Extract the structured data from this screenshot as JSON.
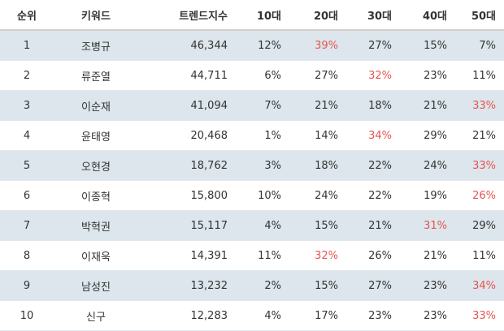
{
  "colors": {
    "highlight": "#e8544f",
    "stripe": "#dce6ec"
  },
  "header": {
    "rank": "순위",
    "keyword": "키워드",
    "trend_index": "트렌드지수",
    "age10": "10대",
    "age20": "20대",
    "age30": "30대",
    "age40": "40대",
    "age50": "50대"
  },
  "rows": [
    {
      "rank": "1",
      "keyword": "조병규",
      "trend": "46,344",
      "age10": "12%",
      "age20": "39%",
      "age30": "27%",
      "age40": "15%",
      "age50": "7%",
      "highlight": "age20"
    },
    {
      "rank": "2",
      "keyword": "류준열",
      "trend": "44,711",
      "age10": "6%",
      "age20": "27%",
      "age30": "32%",
      "age40": "23%",
      "age50": "11%",
      "highlight": "age30"
    },
    {
      "rank": "3",
      "keyword": "이순재",
      "trend": "41,094",
      "age10": "7%",
      "age20": "21%",
      "age30": "18%",
      "age40": "21%",
      "age50": "33%",
      "highlight": "age50"
    },
    {
      "rank": "4",
      "keyword": "윤태영",
      "trend": "20,468",
      "age10": "1%",
      "age20": "14%",
      "age30": "34%",
      "age40": "29%",
      "age50": "21%",
      "highlight": "age30"
    },
    {
      "rank": "5",
      "keyword": "오현경",
      "trend": "18,762",
      "age10": "3%",
      "age20": "18%",
      "age30": "22%",
      "age40": "24%",
      "age50": "33%",
      "highlight": "age50"
    },
    {
      "rank": "6",
      "keyword": "이종혁",
      "trend": "15,800",
      "age10": "10%",
      "age20": "24%",
      "age30": "22%",
      "age40": "19%",
      "age50": "26%",
      "highlight": "age50"
    },
    {
      "rank": "7",
      "keyword": "박혁권",
      "trend": "15,117",
      "age10": "4%",
      "age20": "15%",
      "age30": "21%",
      "age40": "31%",
      "age50": "29%",
      "highlight": "age40"
    },
    {
      "rank": "8",
      "keyword": "이재욱",
      "trend": "14,391",
      "age10": "11%",
      "age20": "32%",
      "age30": "26%",
      "age40": "21%",
      "age50": "11%",
      "highlight": "age20"
    },
    {
      "rank": "9",
      "keyword": "남성진",
      "trend": "13,232",
      "age10": "2%",
      "age20": "15%",
      "age30": "27%",
      "age40": "23%",
      "age50": "34%",
      "highlight": "age50"
    },
    {
      "rank": "10",
      "keyword": "신구",
      "trend": "12,283",
      "age10": "4%",
      "age20": "17%",
      "age30": "23%",
      "age40": "23%",
      "age50": "33%",
      "highlight": "age50"
    }
  ]
}
